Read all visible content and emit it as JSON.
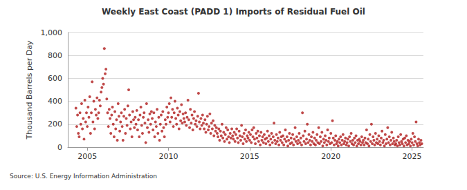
{
  "chart_data": {
    "type": "scatter",
    "title": "Weekly East Coast (PADD 1) Imports of Residual Fuel Oil",
    "y_label": "Thousand Barrels per Day",
    "annotation": "Source: U.S. Energy Information Administration",
    "color": "#b01c1c",
    "marker": "circle",
    "grid": true,
    "xlim": [
      2003.8,
      2025.7
    ],
    "xticks": [
      2005,
      2010,
      2015,
      2020,
      2025
    ],
    "ylim": [
      0,
      1000
    ],
    "yticks": [
      0,
      200,
      400,
      600,
      800,
      {
        "value": 1000,
        "label": "1,000"
      }
    ],
    "x": [
      2004.3,
      2004.35,
      2004.4,
      2004.45,
      2004.5,
      2004.55,
      2004.6,
      2004.65,
      2004.7,
      2004.75,
      2004.8,
      2004.85,
      2004.9,
      2004.95,
      2005,
      2005.05,
      2005.1,
      2005.15,
      2005.2,
      2005.25,
      2005.3,
      2005.35,
      2005.4,
      2005.45,
      2005.5,
      2005.55,
      2005.6,
      2005.65,
      2005.7,
      2005.75,
      2005.8,
      2005.85,
      2005.9,
      2005.95,
      2006,
      2006.05,
      2006.1,
      2006.15,
      2006.2,
      2006.25,
      2006.3,
      2006.35,
      2006.4,
      2006.45,
      2006.5,
      2006.55,
      2006.6,
      2006.65,
      2006.7,
      2006.75,
      2006.8,
      2006.85,
      2006.9,
      2006.95,
      2007,
      2007.05,
      2007.1,
      2007.15,
      2007.2,
      2007.25,
      2007.3,
      2007.35,
      2007.4,
      2007.45,
      2007.5,
      2007.55,
      2007.6,
      2007.65,
      2007.7,
      2007.75,
      2007.8,
      2007.85,
      2007.9,
      2007.95,
      2008,
      2008.05,
      2008.1,
      2008.15,
      2008.2,
      2008.25,
      2008.3,
      2008.35,
      2008.4,
      2008.45,
      2008.5,
      2008.55,
      2008.6,
      2008.65,
      2008.7,
      2008.75,
      2008.8,
      2008.85,
      2008.9,
      2008.95,
      2009,
      2009.05,
      2009.1,
      2009.15,
      2009.2,
      2009.25,
      2009.3,
      2009.35,
      2009.4,
      2009.45,
      2009.5,
      2009.55,
      2009.6,
      2009.65,
      2009.7,
      2009.75,
      2009.8,
      2009.85,
      2009.9,
      2009.95,
      2010,
      2010.05,
      2010.1,
      2010.15,
      2010.2,
      2010.25,
      2010.3,
      2010.35,
      2010.4,
      2010.45,
      2010.5,
      2010.55,
      2010.6,
      2010.65,
      2010.7,
      2010.75,
      2010.8,
      2010.85,
      2010.9,
      2010.95,
      2011,
      2011.05,
      2011.1,
      2011.15,
      2011.2,
      2011.25,
      2011.3,
      2011.35,
      2011.4,
      2011.45,
      2011.5,
      2011.55,
      2011.6,
      2011.65,
      2011.7,
      2011.75,
      2011.8,
      2011.85,
      2011.9,
      2011.95,
      2012,
      2012.05,
      2012.1,
      2012.15,
      2012.2,
      2012.25,
      2012.3,
      2012.35,
      2012.4,
      2012.45,
      2012.5,
      2012.55,
      2012.6,
      2012.65,
      2012.7,
      2012.75,
      2012.8,
      2012.85,
      2012.9,
      2012.95,
      2013,
      2013.05,
      2013.1,
      2013.15,
      2013.2,
      2013.25,
      2013.3,
      2013.35,
      2013.4,
      2013.45,
      2013.5,
      2013.55,
      2013.6,
      2013.65,
      2013.7,
      2013.75,
      2013.8,
      2013.85,
      2013.9,
      2013.95,
      2014,
      2014.05,
      2014.1,
      2014.15,
      2014.2,
      2014.25,
      2014.3,
      2014.35,
      2014.4,
      2014.45,
      2014.5,
      2014.55,
      2014.6,
      2014.65,
      2014.7,
      2014.75,
      2014.8,
      2014.85,
      2014.9,
      2014.95,
      2015,
      2015.05,
      2015.1,
      2015.15,
      2015.2,
      2015.25,
      2015.3,
      2015.35,
      2015.4,
      2015.45,
      2015.5,
      2015.55,
      2015.6,
      2015.65,
      2015.7,
      2015.75,
      2015.8,
      2015.85,
      2015.9,
      2015.95,
      2016,
      2016.05,
      2016.1,
      2016.15,
      2016.2,
      2016.25,
      2016.3,
      2016.35,
      2016.4,
      2016.45,
      2016.5,
      2016.55,
      2016.6,
      2016.65,
      2016.7,
      2016.75,
      2016.8,
      2016.85,
      2016.9,
      2016.95,
      2017,
      2017.05,
      2017.1,
      2017.15,
      2017.2,
      2017.25,
      2017.3,
      2017.35,
      2017.4,
      2017.45,
      2017.5,
      2017.55,
      2017.6,
      2017.65,
      2017.7,
      2017.75,
      2017.8,
      2017.85,
      2017.9,
      2017.95,
      2018,
      2018.05,
      2018.1,
      2018.15,
      2018.2,
      2018.25,
      2018.3,
      2018.35,
      2018.4,
      2018.45,
      2018.5,
      2018.55,
      2018.6,
      2018.65,
      2018.7,
      2018.75,
      2018.8,
      2018.85,
      2018.9,
      2018.95,
      2019,
      2019.05,
      2019.1,
      2019.15,
      2019.2,
      2019.25,
      2019.3,
      2019.35,
      2019.4,
      2019.45,
      2019.5,
      2019.55,
      2019.6,
      2019.65,
      2019.7,
      2019.75,
      2019.8,
      2019.85,
      2019.9,
      2019.95,
      2020,
      2020.05,
      2020.1,
      2020.15,
      2020.2,
      2020.25,
      2020.3,
      2020.35,
      2020.4,
      2020.45,
      2020.5,
      2020.55,
      2020.6,
      2020.65,
      2020.7,
      2020.75,
      2020.8,
      2020.85,
      2020.9,
      2020.95,
      2021,
      2021.05,
      2021.1,
      2021.15,
      2021.2,
      2021.25,
      2021.3,
      2021.35,
      2021.4,
      2021.45,
      2021.5,
      2021.55,
      2021.6,
      2021.65,
      2021.7,
      2021.75,
      2021.8,
      2021.85,
      2021.9,
      2021.95,
      2022,
      2022.05,
      2022.1,
      2022.15,
      2022.2,
      2022.25,
      2022.3,
      2022.35,
      2022.4,
      2022.45,
      2022.5,
      2022.55,
      2022.6,
      2022.65,
      2022.7,
      2022.75,
      2022.8,
      2022.85,
      2022.9,
      2022.95,
      2023,
      2023.05,
      2023.1,
      2023.15,
      2023.2,
      2023.25,
      2023.3,
      2023.35,
      2023.4,
      2023.45,
      2023.5,
      2023.55,
      2023.6,
      2023.65,
      2023.7,
      2023.75,
      2023.8,
      2023.85,
      2023.9,
      2023.95,
      2024,
      2024.05,
      2024.1,
      2024.15,
      2024.2,
      2024.25,
      2024.3,
      2024.35,
      2024.4,
      2024.45,
      2024.5,
      2024.55,
      2024.6,
      2024.65,
      2024.7,
      2024.75,
      2024.8,
      2024.85,
      2024.9,
      2024.95,
      2025,
      2025.05,
      2025.1,
      2025.15,
      2025.2,
      2025.25,
      2025.3,
      2025.35,
      2025.4,
      2025.45,
      2025.5,
      2025.55,
      2025.6
    ],
    "values": [
      340,
      180,
      280,
      120,
      90,
      300,
      200,
      380,
      160,
      250,
      70,
      410,
      220,
      300,
      180,
      350,
      260,
      440,
      120,
      300,
      570,
      220,
      400,
      160,
      330,
      280,
      430,
      250,
      300,
      410,
      360,
      480,
      520,
      600,
      550,
      860,
      640,
      680,
      420,
      300,
      180,
      330,
      250,
      120,
      280,
      350,
      200,
      90,
      310,
      160,
      240,
      60,
      380,
      270,
      140,
      220,
      300,
      180,
      60,
      270,
      330,
      120,
      250,
      190,
      360,
      500,
      280,
      160,
      220,
      90,
      310,
      240,
      170,
      260,
      200,
      320,
      150,
      240,
      90,
      280,
      350,
      190,
      120,
      260,
      300,
      210,
      40,
      380,
      170,
      240,
      130,
      290,
      200,
      310,
      250,
      150,
      300,
      90,
      220,
      180,
      330,
      120,
      260,
      60,
      200,
      280,
      140,
      310,
      170,
      90,
      240,
      200,
      350,
      260,
      300,
      380,
      220,
      430,
      260,
      330,
      180,
      300,
      400,
      250,
      200,
      340,
      280,
      160,
      310,
      230,
      370,
      210,
      290,
      250,
      220,
      300,
      190,
      260,
      410,
      240,
      170,
      330,
      210,
      280,
      150,
      250,
      310,
      200,
      230,
      180,
      270,
      470,
      220,
      160,
      250,
      190,
      280,
      210,
      160,
      240,
      130,
      200,
      270,
      150,
      180,
      290,
      120,
      210,
      160,
      230,
      100,
      190,
      140,
      170,
      120,
      90,
      160,
      60,
      140,
      100,
      200,
      80,
      130,
      50,
      110,
      170,
      70,
      150,
      90,
      40,
      120,
      80,
      160,
      100,
      70,
      130,
      50,
      110,
      160,
      80,
      40,
      140,
      100,
      60,
      190,
      90,
      30,
      120,
      70,
      150,
      50,
      100,
      80,
      130,
      60,
      110,
      40,
      150,
      90,
      170,
      70,
      30,
      120,
      80,
      140,
      50,
      100,
      20,
      130,
      60,
      90,
      40,
      110,
      70,
      30,
      80,
      140,
      50,
      100,
      20,
      70,
      120,
      40,
      90,
      210,
      60,
      30,
      110,
      50,
      80,
      20,
      130,
      60,
      90,
      40,
      100,
      20,
      70,
      150,
      50,
      90,
      10,
      60,
      120,
      30,
      80,
      40,
      110,
      20,
      70,
      170,
      50,
      90,
      30,
      60,
      120,
      40,
      80,
      20,
      300,
      100,
      50,
      140,
      30,
      70,
      200,
      40,
      110,
      60,
      20,
      90,
      50,
      130,
      30,
      80,
      20,
      60,
      110,
      40,
      170,
      30,
      90,
      50,
      130,
      10,
      70,
      40,
      100,
      60,
      20,
      150,
      50,
      80,
      30,
      120,
      40,
      230,
      80,
      20,
      60,
      100,
      30,
      50,
      10,
      70,
      40,
      90,
      20,
      60,
      110,
      30,
      50,
      80,
      20,
      40,
      70,
      10,
      90,
      50,
      120,
      30,
      60,
      20,
      80,
      40,
      100,
      10,
      60,
      30,
      70,
      50,
      20,
      90,
      40,
      60,
      20,
      80,
      40,
      150,
      30,
      70,
      10,
      110,
      50,
      200,
      30,
      90,
      60,
      20,
      120,
      40,
      70,
      30,
      100,
      50,
      20,
      80,
      140,
      40,
      60,
      10,
      110,
      30,
      70,
      170,
      40,
      90,
      20,
      60,
      130,
      30,
      80,
      50,
      20,
      30,
      60,
      10,
      90,
      40,
      20,
      110,
      50,
      30,
      70,
      10,
      80,
      40,
      100,
      20,
      60,
      30,
      50,
      10,
      70,
      40,
      120,
      20,
      90,
      50,
      220,
      30,
      10,
      70,
      40,
      20,
      60,
      30
    ]
  }
}
